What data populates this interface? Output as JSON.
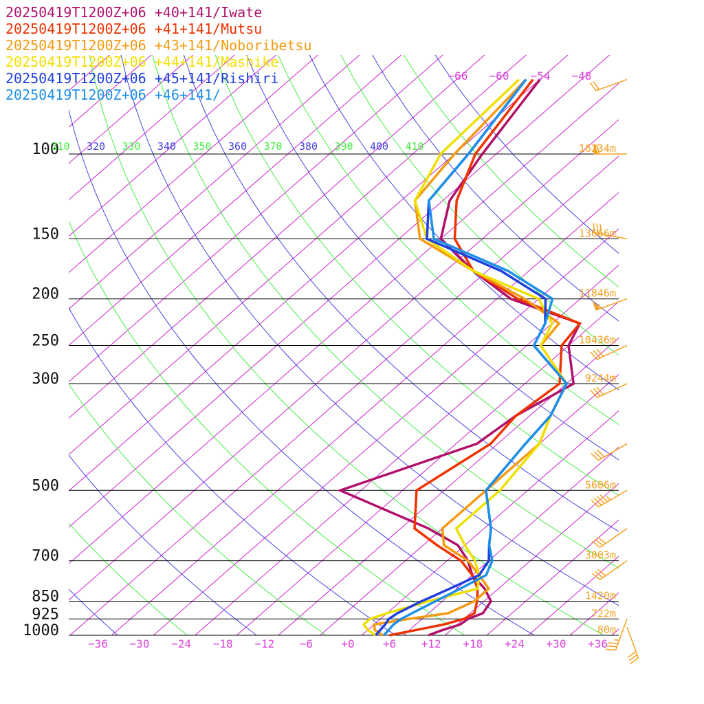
{
  "chart_data": {
    "type": "line",
    "series": [
      {
        "name": "20250419T1200Z+06 +40+141/Iwate",
        "color": "#b0106a",
        "pressure": [
          1000,
          975,
          950,
          925,
          900,
          850,
          800,
          750,
          700,
          650,
          600,
          500,
          400,
          350,
          300,
          250,
          225,
          200,
          175,
          150,
          125,
          100,
          70
        ],
        "temperature": [
          11.6,
          12.8,
          14.4,
          14.6,
          15.8,
          15.0,
          12.0,
          8.0,
          5.0,
          1.0,
          -6.0,
          -25.0,
          -13.0,
          -12.0,
          -9.0,
          -16.0,
          -18.0,
          -32.0,
          -42.0,
          -52.0,
          -57.0,
          -60.0,
          -64.0
        ]
      },
      {
        "name": "20250419T1200Z+06 +41+141/Mutsu",
        "color": "#ee3300",
        "pressure": [
          1000,
          975,
          950,
          925,
          900,
          850,
          800,
          750,
          700,
          650,
          600,
          500,
          400,
          350,
          300,
          250,
          225,
          200,
          175,
          150,
          125,
          100,
          70
        ],
        "temperature": [
          6.0,
          9.0,
          12.0,
          14.0,
          14.6,
          13.0,
          11.0,
          8.0,
          4.0,
          -2.0,
          -8.0,
          -14.0,
          -11.0,
          -12.0,
          -11.0,
          -17.0,
          -18.0,
          -31.0,
          -42.0,
          -50.0,
          -56.0,
          -61.0,
          -65.0
        ]
      },
      {
        "name": "20250419T1200Z+06 +43+141/Noboribetsu",
        "color": "#f59a10",
        "pressure": [
          1000,
          975,
          950,
          925,
          900,
          850,
          800,
          750,
          700,
          650,
          600,
          500,
          400,
          350,
          300,
          250,
          225,
          200,
          175,
          150,
          125,
          100,
          70
        ],
        "temperature": [
          5.0,
          3.0,
          2.0,
          6.0,
          10.8,
          12.6,
          12.6,
          9.0,
          5.0,
          -1.0,
          -4.0,
          -4.0,
          -4.0,
          -7.0,
          -10.0,
          -20.0,
          -21.0,
          -30.0,
          -42.0,
          -55.0,
          -62.0,
          -64.0,
          -66.0
        ]
      },
      {
        "name": "20250419T1200Z+06 +44+141/Mashike",
        "color": "#f0e000",
        "pressure": [
          1000,
          975,
          950,
          925,
          900,
          850,
          800,
          750,
          700,
          650,
          600,
          500,
          400,
          350,
          300,
          250,
          225,
          200,
          175,
          150,
          125,
          100,
          70
        ],
        "temperature": [
          4.0,
          2.0,
          0.5,
          0.5,
          2.0,
          6.0,
          11.0,
          9.0,
          6.0,
          2.0,
          -2.0,
          -2.0,
          -4.0,
          -7.0,
          -10.0,
          -20.0,
          -22.0,
          -28.0,
          -42.0,
          -54.0,
          -62.0,
          -66.0,
          -67.0
        ]
      },
      {
        "name": "20250419T1200Z+06 +45+141/Rishiri",
        "color": "#2040dd",
        "pressure": [
          1000,
          975,
          950,
          925,
          900,
          850,
          800,
          750,
          700,
          650,
          600,
          500,
          400,
          350,
          300,
          250,
          225,
          200,
          175,
          150,
          125,
          100,
          70
        ],
        "temperature": [
          4.0,
          3.8,
          3.6,
          3.2,
          3.5,
          5.0,
          7.0,
          9.0,
          8.0,
          5.5,
          3.0,
          -4.0,
          -6.0,
          -7.0,
          -10.0,
          -21.0,
          -23.0,
          -27.0,
          -38.0,
          -54.0,
          -60.0,
          -62.0,
          -66.0
        ]
      },
      {
        "name": "20250419T1200Z+06 +46+141/",
        "color": "#1e90e8",
        "pressure": [
          1000,
          975,
          950,
          925,
          900,
          850,
          800,
          750,
          700,
          650,
          600,
          500,
          400,
          350,
          300,
          250,
          225,
          200,
          175,
          150,
          125,
          100,
          70
        ],
        "temperature": [
          5.2,
          5.0,
          4.8,
          5.0,
          5.6,
          7.0,
          8.5,
          10.0,
          8.5,
          5.5,
          3.0,
          -4.0,
          -6.0,
          -7.0,
          -10.0,
          -21.0,
          -23.0,
          -26.0,
          -37.0,
          -53.0,
          -60.0,
          -62.0,
          -66.0
        ]
      }
    ],
    "pressure_levels": [
      {
        "p": 100,
        "label": "100",
        "height": "16234m"
      },
      {
        "p": 150,
        "label": "150",
        "height": "13666m"
      },
      {
        "p": 200,
        "label": "200",
        "height": "11846m"
      },
      {
        "p": 250,
        "label": "250",
        "height": "10436m"
      },
      {
        "p": 300,
        "label": "300",
        "height": "9244m"
      },
      {
        "p": 500,
        "label": "500",
        "height": "5606m"
      },
      {
        "p": 700,
        "label": "700",
        "height": "3003m"
      },
      {
        "p": 850,
        "label": "850",
        "height": "1420m"
      },
      {
        "p": 925,
        "label": "925",
        "height": "722m"
      },
      {
        "p": 1000,
        "label": "1000",
        "height": "80m"
      }
    ],
    "x_ticks": [
      -36,
      -30,
      -24,
      -18,
      -12,
      -6,
      0,
      6,
      12,
      18,
      24,
      30,
      36
    ],
    "x_tick_labels": [
      "−36",
      "−30",
      "−24",
      "−18",
      "−12",
      "−6",
      "+0",
      "+6",
      "+12",
      "+18",
      "+24",
      "+30",
      "+36"
    ],
    "upper_temp_labels": [
      "−66",
      "−60",
      "−54",
      "−48"
    ],
    "theta_labels": [
      "310",
      "320",
      "330",
      "340",
      "350",
      "360",
      "370",
      "380",
      "390",
      "400",
      "410"
    ],
    "wind_barbs": [
      {
        "p": 70,
        "dir": 250,
        "speed": 20
      },
      {
        "p": 100,
        "dir": 270,
        "speed": 60
      },
      {
        "p": 150,
        "dir": 280,
        "speed": 30
      },
      {
        "p": 200,
        "dir": 250,
        "speed": 55
      },
      {
        "p": 250,
        "dir": 245,
        "speed": 30
      },
      {
        "p": 300,
        "dir": 245,
        "speed": 30
      },
      {
        "p": 400,
        "dir": 240,
        "speed": 30
      },
      {
        "p": 500,
        "dir": 240,
        "speed": 45
      },
      {
        "p": 600,
        "dir": 235,
        "speed": 30
      },
      {
        "p": 700,
        "dir": 235,
        "speed": 30
      },
      {
        "p": 925,
        "dir": 200,
        "speed": 35
      },
      {
        "p": 1000,
        "dir": 160,
        "speed": 30
      }
    ],
    "colors": {
      "isotherm": "#cc22cc",
      "dry_adiabat_green": "#44ee44",
      "dry_adiabat_blue": "#4444dd",
      "height_label": "#f5a020",
      "wind_barb": "#f5a020",
      "x_tick": "#dd44dd",
      "pressure_label": "#111111"
    },
    "xlim": [
      -40,
      40
    ],
    "ylim": [
      1000,
      60
    ],
    "grid": true
  }
}
